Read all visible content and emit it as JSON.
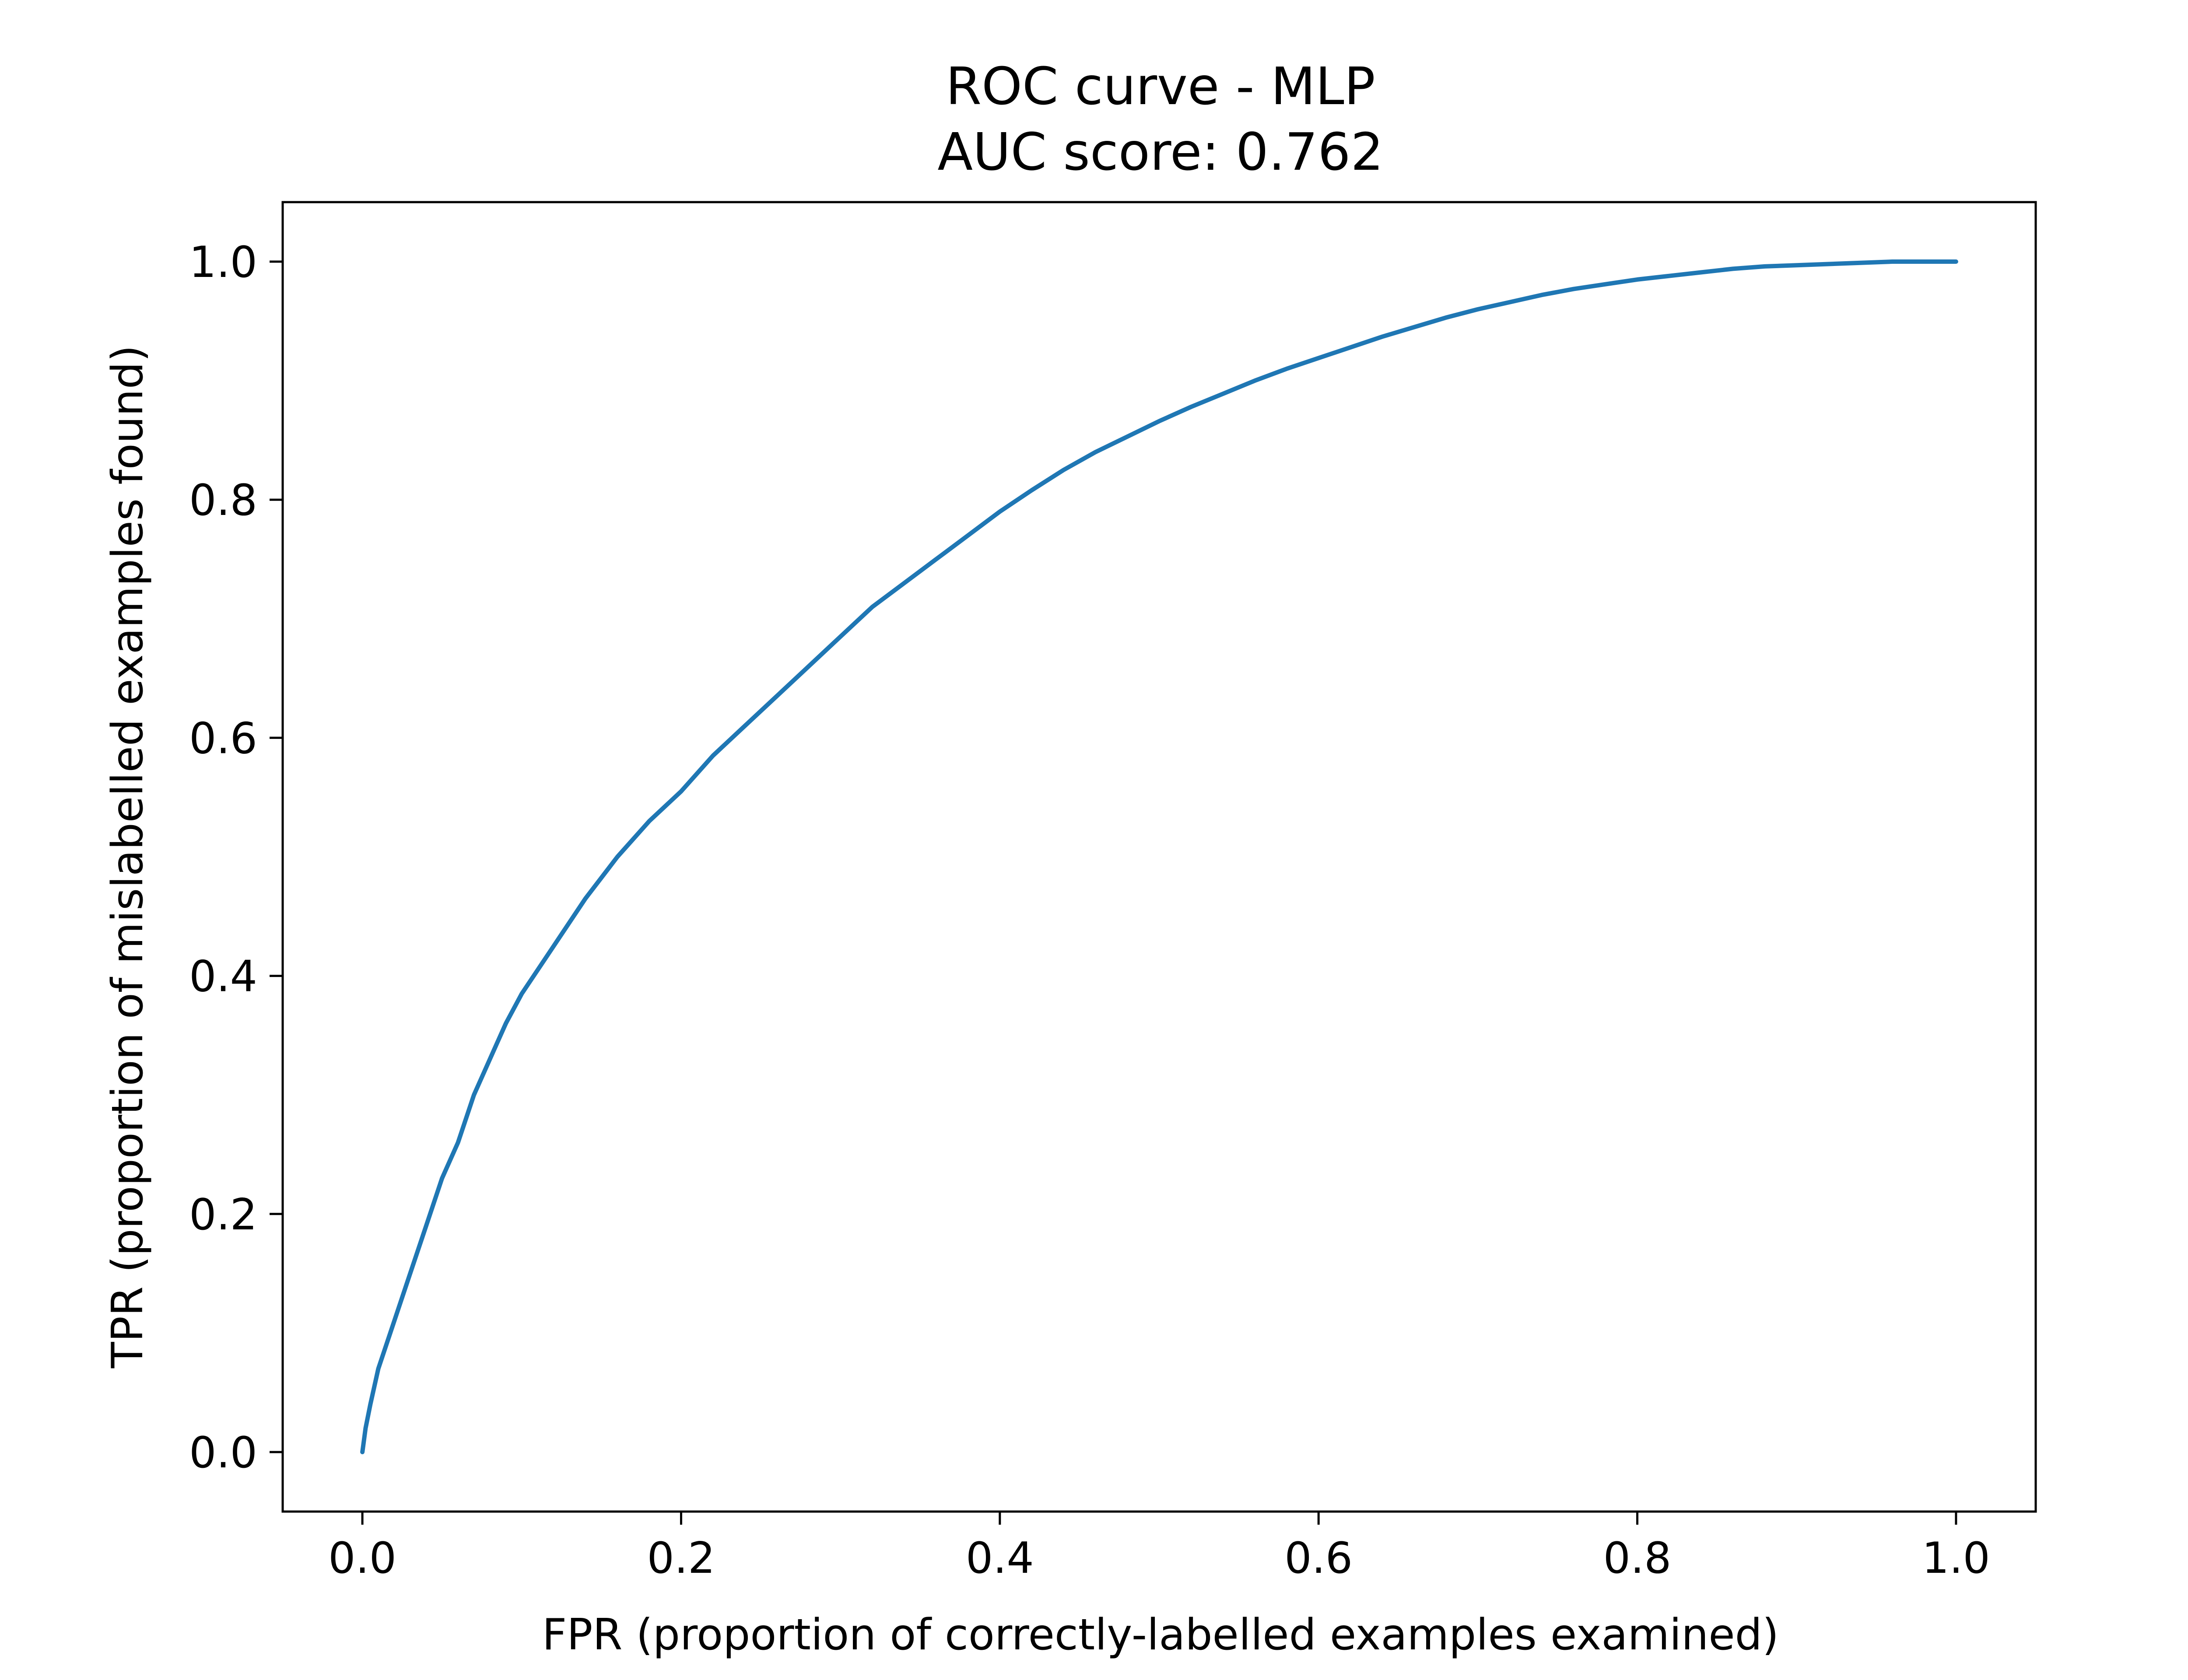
{
  "chart_data": {
    "type": "line",
    "title": "ROC curve - MLP",
    "subtitle": "AUC score: 0.762",
    "xlabel": "FPR (proportion of correctly-labelled examples examined)",
    "ylabel": "TPR (proportion of mislabelled examples found)",
    "xlim": [
      -0.05,
      1.05
    ],
    "ylim": [
      -0.05,
      1.05
    ],
    "x_ticks": [
      "0.0",
      "0.2",
      "0.4",
      "0.6",
      "0.8",
      "1.0"
    ],
    "y_ticks": [
      "0.0",
      "0.2",
      "0.4",
      "0.6",
      "0.8",
      "1.0"
    ],
    "grid": false,
    "line_color": "#1f77b4",
    "series": [
      {
        "x": [
          0.0,
          0.002,
          0.005,
          0.01,
          0.015,
          0.02,
          0.03,
          0.04,
          0.05,
          0.06,
          0.07,
          0.08,
          0.09,
          0.1,
          0.12,
          0.14,
          0.16,
          0.18,
          0.2,
          0.22,
          0.24,
          0.26,
          0.28,
          0.3,
          0.32,
          0.34,
          0.36,
          0.38,
          0.4,
          0.42,
          0.44,
          0.46,
          0.48,
          0.5,
          0.52,
          0.54,
          0.56,
          0.58,
          0.6,
          0.62,
          0.64,
          0.66,
          0.68,
          0.7,
          0.72,
          0.74,
          0.76,
          0.78,
          0.8,
          0.82,
          0.84,
          0.86,
          0.88,
          0.9,
          0.92,
          0.94,
          0.96,
          0.98,
          1.0
        ],
        "y": [
          0.0,
          0.02,
          0.04,
          0.07,
          0.09,
          0.11,
          0.15,
          0.19,
          0.23,
          0.26,
          0.3,
          0.33,
          0.36,
          0.385,
          0.425,
          0.465,
          0.5,
          0.53,
          0.555,
          0.585,
          0.61,
          0.635,
          0.66,
          0.685,
          0.71,
          0.73,
          0.75,
          0.77,
          0.79,
          0.808,
          0.825,
          0.84,
          0.853,
          0.866,
          0.878,
          0.889,
          0.9,
          0.91,
          0.919,
          0.928,
          0.937,
          0.945,
          0.953,
          0.96,
          0.966,
          0.972,
          0.977,
          0.981,
          0.985,
          0.988,
          0.991,
          0.994,
          0.996,
          0.997,
          0.998,
          0.999,
          1.0,
          1.0,
          1.0
        ]
      }
    ]
  }
}
